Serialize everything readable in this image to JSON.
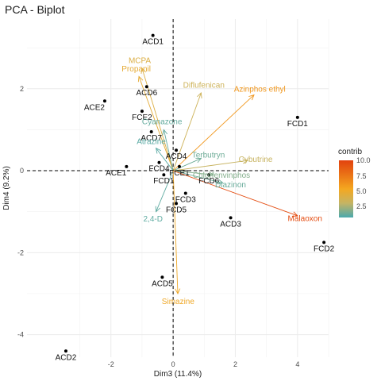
{
  "title": "PCA - Biplot",
  "chart_data": {
    "type": "scatter",
    "title": "PCA - Biplot",
    "xlabel": "Dim3 (11.4%)",
    "ylabel": "Dim4 (9.2%)",
    "xlim": [
      -4.7,
      5.0
    ],
    "ylim": [
      -4.55,
      3.7
    ],
    "xticks": [
      -2,
      0,
      2,
      4
    ],
    "yticks": [
      -4,
      -2,
      0,
      2
    ],
    "grid": true,
    "legend": {
      "title": "contrib",
      "position": "right",
      "ticks": [
        "10.0",
        "7.5",
        "5.0",
        "2.5"
      ],
      "range": [
        0.5,
        10.0
      ],
      "colors": [
        "#4aa9ad",
        "#c5b464",
        "#f4a720",
        "#ea7316",
        "#e2420f"
      ]
    },
    "individuals": [
      {
        "label": "ACD1",
        "x": -0.65,
        "y": 3.3
      },
      {
        "label": "ACE2",
        "x": -2.2,
        "y": 1.7
      },
      {
        "label": "ACD6",
        "x": -0.85,
        "y": 2.05
      },
      {
        "label": "FCE2",
        "x": -1.0,
        "y": 1.45
      },
      {
        "label": "ACD7",
        "x": -0.7,
        "y": 0.95
      },
      {
        "label": "ACD4",
        "x": 0.1,
        "y": 0.5
      },
      {
        "label": "ACE1",
        "x": -1.5,
        "y": 0.1
      },
      {
        "label": "FCD4",
        "x": -0.45,
        "y": 0.2
      },
      {
        "label": "FCD1",
        "x": -0.3,
        "y": -0.1
      },
      {
        "label": "FCE1",
        "x": 0.2,
        "y": 0.1
      },
      {
        "label": "FCD6",
        "x": 1.15,
        "y": -0.1
      },
      {
        "label": "FCD3",
        "x": 0.4,
        "y": -0.55
      },
      {
        "label": "FCD5",
        "x": 0.1,
        "y": -0.8
      },
      {
        "label": "ACD3",
        "x": 1.85,
        "y": -1.15
      },
      {
        "label": "FCD1",
        "x": 4.0,
        "y": 1.3
      },
      {
        "label": "FCD2",
        "x": 4.85,
        "y": -1.75
      },
      {
        "label": "ACD5",
        "x": -0.35,
        "y": -2.6
      },
      {
        "label": "ACD2",
        "x": -3.45,
        "y": -4.4
      }
    ],
    "variables": [
      {
        "label": "MCPA",
        "x": -1.0,
        "y": 2.5,
        "contrib": 4.0
      },
      {
        "label": "Propanil",
        "x": -1.1,
        "y": 2.3,
        "contrib": 4.5
      },
      {
        "label": "Diflufenican",
        "x": 0.9,
        "y": 1.9,
        "contrib": 3.3
      },
      {
        "label": "Azinphos ethyl",
        "x": 2.6,
        "y": 1.85,
        "contrib": 6.0
      },
      {
        "label": "Cyanazone",
        "x": -0.3,
        "y": 1.0,
        "contrib": 1.0
      },
      {
        "label": "Terbutryn",
        "x": 0.9,
        "y": 0.3,
        "contrib": 1.2
      },
      {
        "label": "Cybutrine",
        "x": 2.4,
        "y": 0.25,
        "contrib": 3.0
      },
      {
        "label": "Atrazine",
        "x": -0.55,
        "y": 0.55,
        "contrib": 0.8
      },
      {
        "label": "Chlorfenvinphos",
        "x": 1.3,
        "y": -0.1,
        "contrib": 1.6
      },
      {
        "label": "Diazinon",
        "x": 1.6,
        "y": -0.3,
        "contrib": 1.1
      },
      {
        "label": "Malaoxon",
        "x": 4.0,
        "y": -1.1,
        "contrib": 9.5
      },
      {
        "label": "2,4-D",
        "x": -0.55,
        "y": -1.0,
        "contrib": 0.9
      },
      {
        "label": "Simazine",
        "x": 0.15,
        "y": -3.0,
        "contrib": 5.0
      }
    ]
  }
}
